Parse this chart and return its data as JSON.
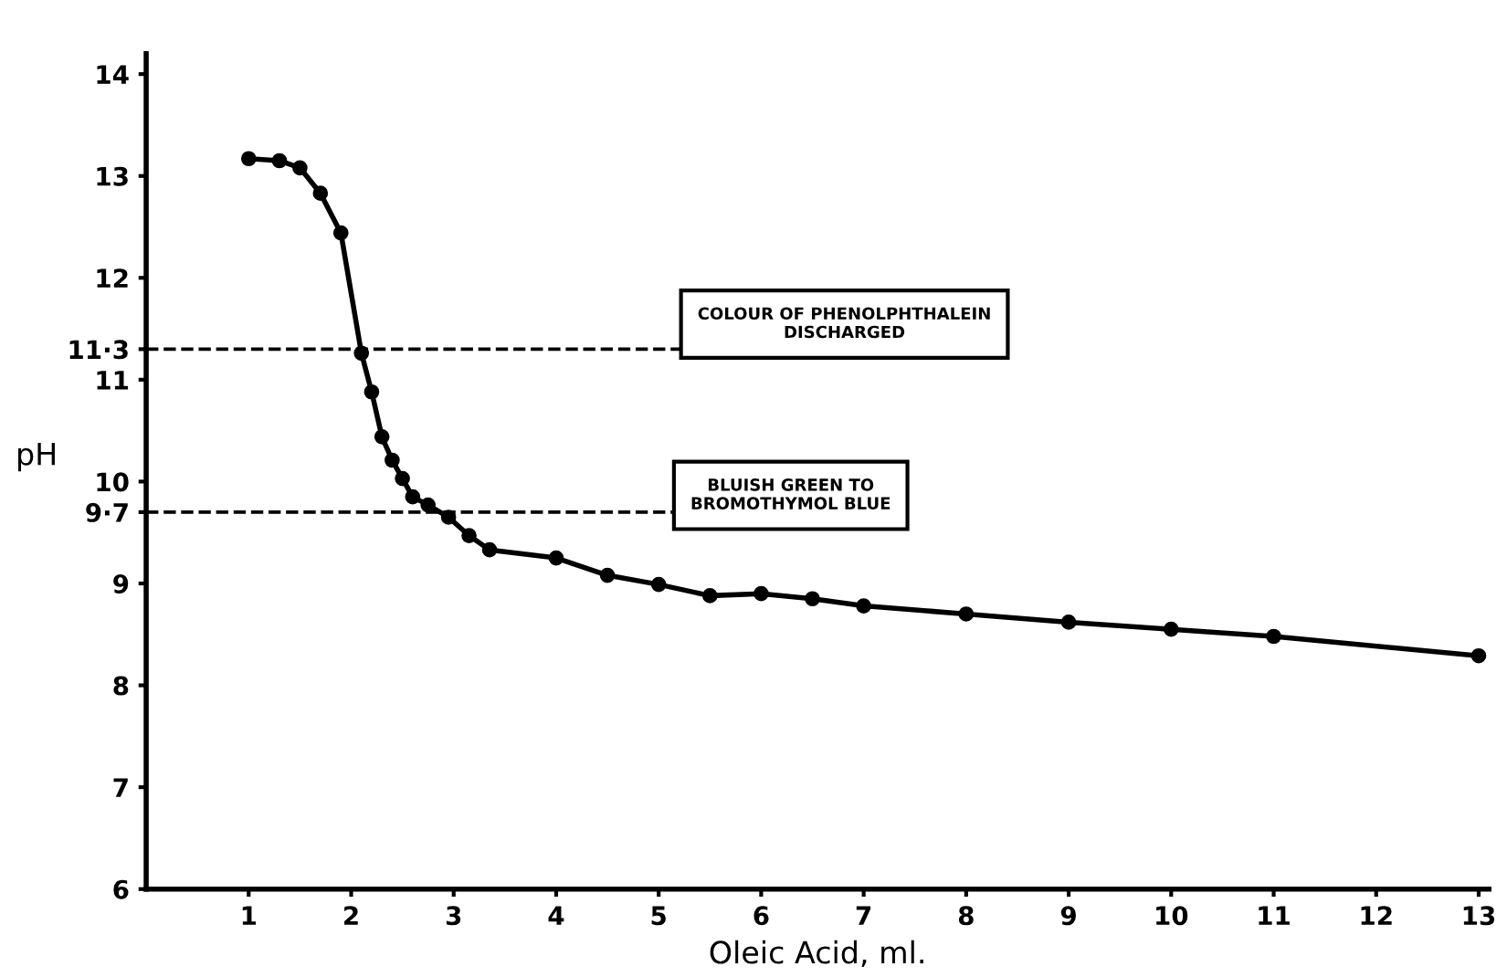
{
  "chart_data": {
    "type": "line",
    "xlabel": "Oleic Acid, ml.",
    "ylabel": "pH",
    "x": [
      1,
      1.3,
      1.5,
      1.7,
      1.9,
      2.1,
      2.2,
      2.3,
      2.4,
      2.5,
      2.6,
      2.75,
      2.95,
      3.15,
      3.35,
      4,
      4.5,
      5,
      5.5,
      6,
      6.5,
      7,
      8,
      9,
      10,
      11,
      13
    ],
    "values": [
      13.17,
      13.15,
      13.08,
      12.83,
      12.44,
      11.26,
      10.88,
      10.44,
      10.21,
      10.03,
      9.85,
      9.77,
      9.65,
      9.47,
      9.33,
      9.25,
      9.08,
      8.99,
      8.88,
      8.9,
      8.85,
      8.78,
      8.7,
      8.62,
      8.55,
      8.48,
      8.29
    ],
    "color": "#000000",
    "marker": "circle",
    "line_style": "solid",
    "grid": false,
    "xlim": [
      0,
      13.1
    ],
    "ylim": [
      6,
      14.2
    ],
    "xticks": [
      1,
      2,
      3,
      4,
      5,
      6,
      7,
      8,
      9,
      10,
      11,
      12,
      13
    ],
    "yticks": [
      6,
      7,
      8,
      9,
      {
        "value": 9.7,
        "label": "9·7"
      },
      10,
      11,
      {
        "value": 11.3,
        "label": "11·3"
      },
      12,
      13,
      14
    ],
    "ref_lines": [
      {
        "axis": "y",
        "value": 11.3,
        "label": "COLOUR OF PHENOLPHTHALEIN\nDISCHARGED",
        "line_style": "dashed"
      },
      {
        "axis": "y",
        "value": 9.7,
        "label": "BLUISH GREEN TO\nBROMOTHYMOL BLUE",
        "line_style": "dashed"
      }
    ]
  }
}
